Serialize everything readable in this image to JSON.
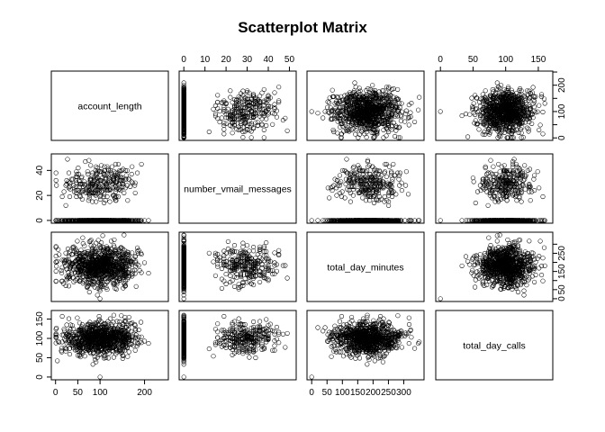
{
  "chart_data": {
    "type": "scatter",
    "title": "Scatterplot Matrix",
    "variables": [
      "account_length",
      "number_vmail_messages",
      "total_day_minutes",
      "total_day_calls"
    ],
    "ranges": {
      "account_length": [
        1,
        243
      ],
      "number_vmail_messages": [
        0,
        51
      ],
      "total_day_minutes": [
        0,
        350.8
      ],
      "total_day_calls": [
        0,
        165
      ]
    },
    "ticks": {
      "account_length": [
        0,
        50,
        100,
        200
      ],
      "number_vmail_messages": [
        0,
        10,
        20,
        30,
        40,
        50
      ],
      "total_day_minutes": [
        0,
        50,
        100,
        150,
        200,
        250,
        300
      ],
      "total_day_calls": [
        0,
        50,
        100,
        150
      ]
    },
    "left_axis_ticks": {
      "number_vmail_messages": [
        0,
        20,
        40
      ],
      "total_day_calls": [
        0,
        50,
        100,
        150
      ]
    },
    "right_axis_ticks": {
      "account_length": [
        0,
        100,
        200
      ],
      "total_day_minutes": [
        0,
        50,
        150,
        250
      ]
    },
    "right_axis_ticks_minor": {
      "account_length": [
        50,
        150,
        250
      ],
      "total_day_minutes": [
        100,
        200,
        300
      ]
    },
    "distributions": {
      "account_length": {
        "mean": 101,
        "sd": 40
      },
      "number_vmail_messages": {
        "zero_fraction": 0.72,
        "mean_nonzero": 29,
        "sd_nonzero": 7.5
      },
      "total_day_minutes": {
        "mean": 180,
        "sd": 54
      },
      "total_day_calls": {
        "mean": 100,
        "sd": 20
      }
    },
    "grid": false,
    "legend": "none"
  }
}
